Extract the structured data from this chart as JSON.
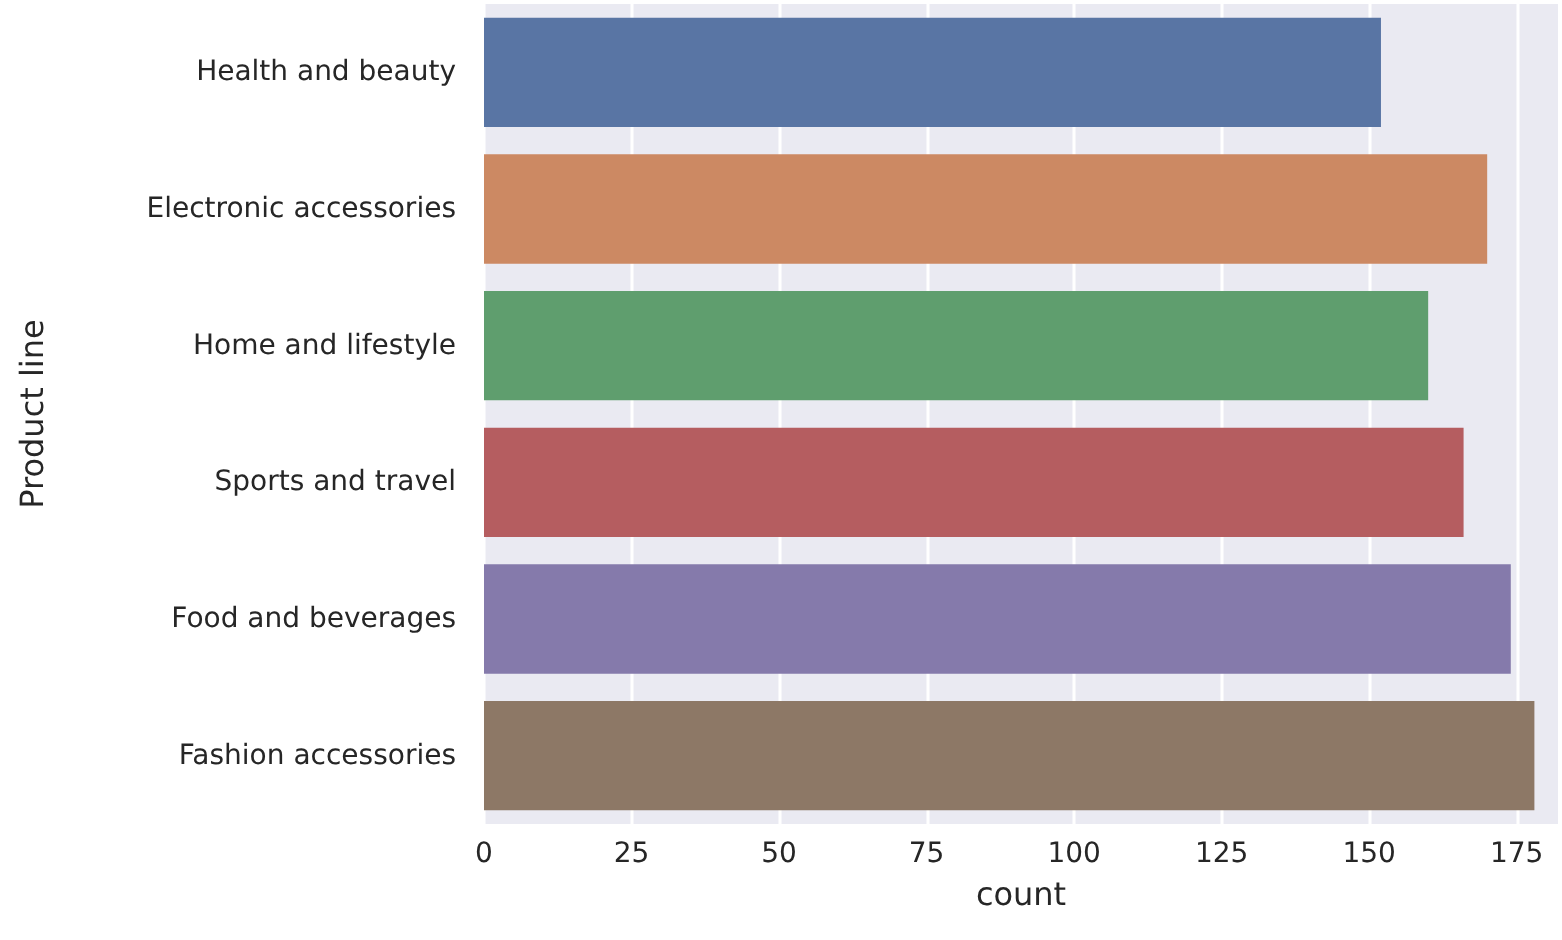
{
  "chart_data": {
    "type": "bar",
    "orientation": "horizontal",
    "xlabel": "count",
    "ylabel": "Product line",
    "categories": [
      "Health and beauty",
      "Electronic accessories",
      "Home and lifestyle",
      "Sports and travel",
      "Food and beverages",
      "Fashion accessories"
    ],
    "values": [
      152,
      170,
      160,
      166,
      174,
      178
    ],
    "colors": [
      "#5975a4",
      "#cc8963",
      "#5f9e6e",
      "#b55d60",
      "#857aab",
      "#8d7866"
    ],
    "xlim": [
      0,
      182
    ],
    "xticks": [
      0,
      25,
      50,
      75,
      100,
      125,
      150,
      175
    ],
    "grid": "x"
  }
}
